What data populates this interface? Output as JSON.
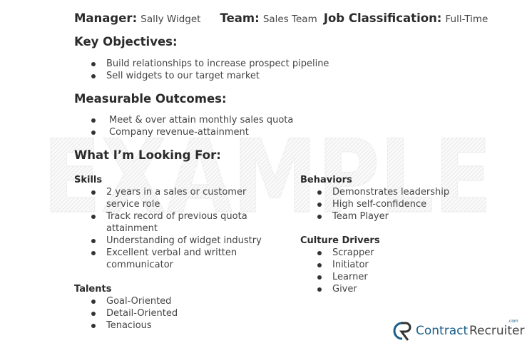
{
  "header": {
    "manager_label": "Manager:",
    "manager": "Sally Widget",
    "team_label": "Team:",
    "team": "Sales Team",
    "job_label": "Job Classification:",
    "job": "Full-Time"
  },
  "objectives": {
    "title": "Key Objectives:",
    "items": [
      "Build relationships to increase prospect pipeline",
      "Sell widgets to our target market"
    ]
  },
  "outcomes": {
    "title": "Measurable Outcomes:",
    "items": [
      "Meet & over attain monthly sales quota",
      "Company revenue-attainment"
    ]
  },
  "looking": {
    "title": "What I’m Looking For:"
  },
  "skills": {
    "title": "Skills",
    "items": [
      [
        "2 years in a sales or customer",
        "service role"
      ],
      [
        "Track record of previous quota",
        "attainment"
      ],
      [
        "Understanding of widget industry"
      ],
      [
        "Excellent verbal and written",
        "communicator"
      ]
    ]
  },
  "talents": {
    "title": "Talents",
    "items": [
      "Goal-Oriented",
      "Detail-Oriented",
      "Tenacious"
    ]
  },
  "behaviors": {
    "title": "Behaviors",
    "items": [
      "Demonstrates leadership",
      "High self-confidence",
      "Team Player"
    ]
  },
  "culture": {
    "title": "Culture Drivers",
    "items": [
      "Scrapper",
      "Initiator",
      "Learner",
      "Giver"
    ]
  },
  "watermark": "EXAMPLE",
  "logo": {
    "text_a": "Contract",
    "text_b": "Recruiter",
    "suffix": ".com",
    "color": "#1a5f8a"
  }
}
